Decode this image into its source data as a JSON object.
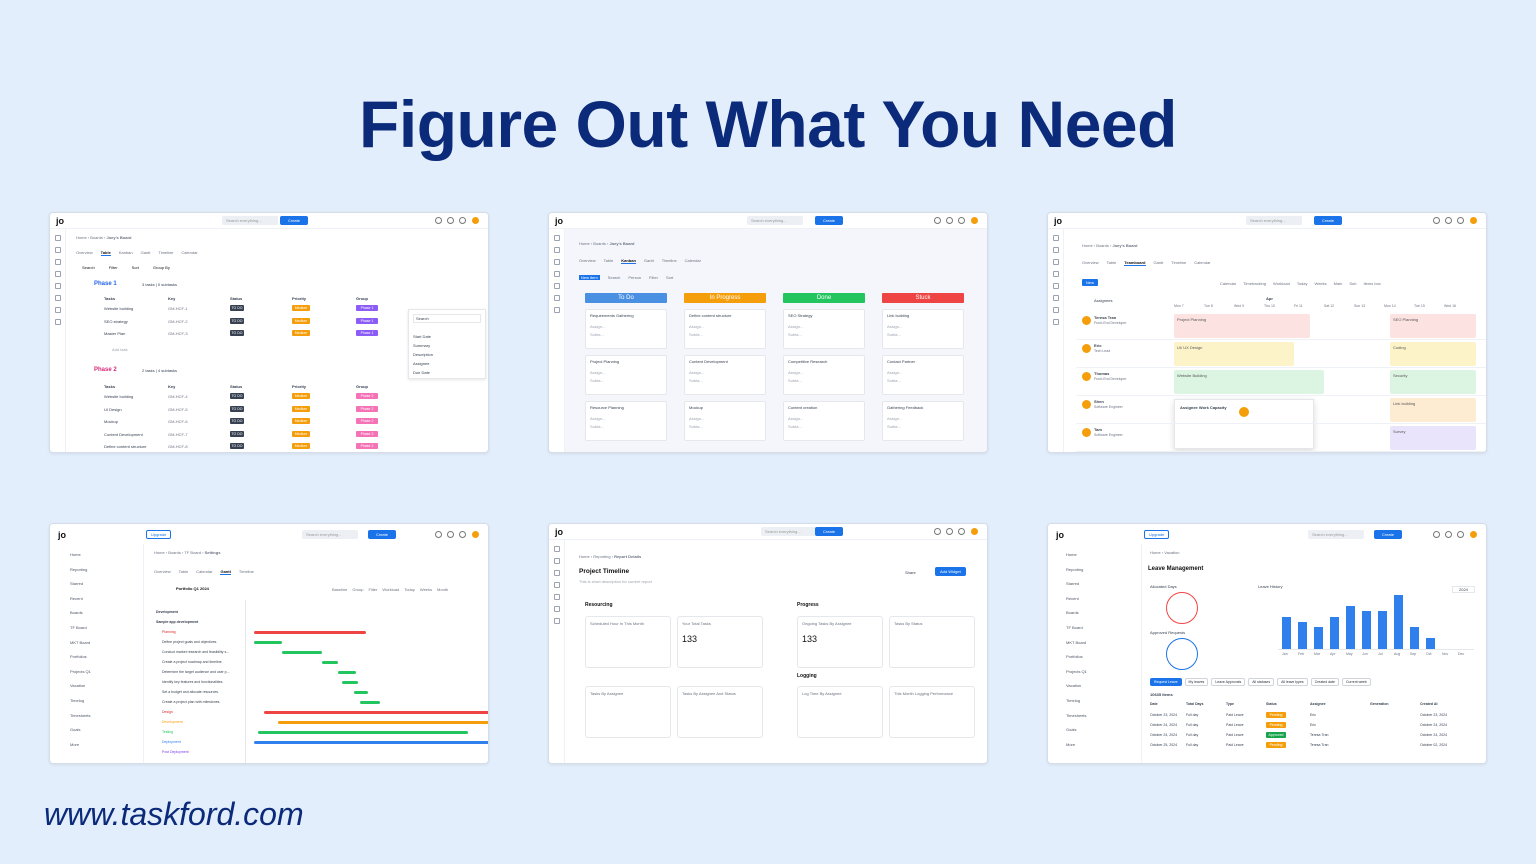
{
  "headline": "Figure Out What You Need",
  "url": "www.taskford.com",
  "colors": {
    "headline": "#0b2a7a",
    "background": "#e3eefc",
    "primary": "#1a73e8"
  },
  "common": {
    "logo": "jo",
    "search_placeholder": "Search everything...",
    "create": "Create",
    "upgrade": "Upgrade",
    "share": "Share"
  },
  "table_card": {
    "breadcrumb": [
      "Home",
      "Boards",
      "Joey's Board"
    ],
    "tabs": [
      "Overview",
      "Table",
      "Kanban",
      "Gantt",
      "Timeline",
      "Calendar"
    ],
    "toolbar": [
      "Search",
      "Filter",
      "Sort",
      "Group By"
    ],
    "phase1": {
      "title": "Phase 1",
      "meta": "3 tasks | 0 subtasks"
    },
    "columns": [
      "Tasks",
      "Key",
      "Status",
      "Priority",
      "Group"
    ],
    "phase1_rows": [
      {
        "task": "Website building",
        "key": "GM-HCF-1",
        "status": "TO DO",
        "priority": "Medium",
        "group": "Phase 1"
      },
      {
        "task": "SEO strategy",
        "key": "GM-HCF-2",
        "status": "TO DO",
        "priority": "Medium",
        "group": "Phase 1"
      },
      {
        "task": "Master Plan",
        "key": "GM-HCF-3",
        "status": "TO DO",
        "priority": "Medium",
        "group": "Phase 1"
      }
    ],
    "add_task": "Add task",
    "phase2": {
      "title": "Phase 2",
      "meta": "2 tasks | 4 subtasks"
    },
    "phase2_rows": [
      {
        "task": "Website building",
        "key": "GM-HCF-4",
        "status": "TO DO",
        "priority": "Medium",
        "group": "Phase 2"
      },
      {
        "task": "UI Design",
        "key": "GM-HCF-5",
        "status": "TO DO",
        "priority": "Medium",
        "group": "Phase 2"
      },
      {
        "task": "Mockup",
        "key": "GM-HCF-6",
        "status": "TO DO",
        "priority": "Medium",
        "group": "Phase 2"
      },
      {
        "task": "Content Development",
        "key": "GM-HCF-7",
        "status": "TO DO",
        "priority": "Medium",
        "group": "Phase 2"
      },
      {
        "task": "Define content structure",
        "key": "GM-HCF-8",
        "status": "TO DO",
        "priority": "Medium",
        "group": "Phase 2"
      }
    ],
    "dropdown": {
      "search": "Search",
      "items": [
        "Start Date",
        "Summary",
        "Description",
        "Assignee",
        "Due Date"
      ]
    }
  },
  "kanban_card": {
    "breadcrumb": [
      "Home",
      "Boards",
      "Joey's Board"
    ],
    "tabs": [
      "Overview",
      "Table",
      "Kanban",
      "Gantt",
      "Timeline",
      "Calendar"
    ],
    "toolbar": [
      "New item",
      "Search",
      "Person",
      "Filter",
      "Sort"
    ],
    "columns": [
      {
        "title": "To Do",
        "color": "#4a90e2",
        "cards": [
          "Requirements Gathering",
          "Project Planning",
          "Resource Planning"
        ]
      },
      {
        "title": "In Progress",
        "color": "#f59e0b",
        "cards": [
          "Define content structure",
          "Content Development",
          "Mockup"
        ]
      },
      {
        "title": "Done",
        "color": "#22c55e",
        "cards": [
          "SEO Strategy",
          "Competitive Research",
          "Content creation"
        ]
      },
      {
        "title": "Stuck",
        "color": "#ef4444",
        "cards": [
          "Link building",
          "Contact Partner",
          "Gathering Feedback"
        ]
      }
    ],
    "card_assignee": "Assign...",
    "card_subtasks": "Subta..."
  },
  "team_card": {
    "breadcrumb": [
      "Home",
      "Boards",
      "Joey's Board"
    ],
    "tabs": [
      "Overview",
      "Table",
      "Teamboard",
      "Gantt",
      "Timeline",
      "Calendar"
    ],
    "new": "New",
    "toolbar": [
      "Calendar",
      "Timetracking",
      "Workload",
      "Today",
      "Weeks",
      "Main",
      "Sub",
      "Items box"
    ],
    "assignees_label": "Assignees",
    "month": "Apr",
    "days": [
      "Mon 7",
      "Tue 8",
      "Wed 9",
      "Thu 10",
      "Fri 11",
      "Sat 12",
      "Sun 13",
      "Mon 14",
      "Tue 15",
      "Wed 16"
    ],
    "people": [
      {
        "name": "Teresa Tran",
        "role": "Front-End Developer"
      },
      {
        "name": "Eric",
        "role": "Tech Lead"
      },
      {
        "name": "Thomas",
        "role": "Front-End Developer"
      },
      {
        "name": "Shen",
        "role": "Software Engineer"
      },
      {
        "name": "Tam",
        "role": "Software Engineer"
      }
    ],
    "blocks": [
      "Project Planning",
      "UI/ UX Design",
      "Website Building",
      "SEO Planning",
      "Coding",
      "Security",
      "Link building",
      "Survey"
    ],
    "popup": "Assignee Work Capacity"
  },
  "gantt_card": {
    "sidebar": [
      "Home",
      "Reporting",
      "Starred",
      "Recent",
      "Boards",
      "TF Board",
      "MKT Board",
      "Portfolios",
      "Projects Q1",
      "Vacation",
      "Timelog",
      "Timesheets",
      "Goals",
      "More"
    ],
    "breadcrumb": [
      "Home",
      "Boards",
      "TF Board",
      "Settings"
    ],
    "tabs": [
      "Overview",
      "Table",
      "Calendar",
      "Gantt",
      "Timeline"
    ],
    "portfolio": "Portfolio Q1 2024",
    "toolbar": [
      "Baseline",
      "Group",
      "Filter",
      "Workload",
      "Today",
      "Weeks",
      "Month"
    ],
    "rows": [
      "Development",
      "Sample app development",
      "Planning",
      "Define project goals and objectives.",
      "Conduct market research and feasibility s...",
      "Create a project roadmap and timeline.",
      "Determine the target audience and user p...",
      "Identify key features and functionalities.",
      "Set a budget and allocate resources.",
      "Create a project plan with milestones.",
      "Design",
      "Development",
      "Testing",
      "Deployment",
      "Post Deployment"
    ]
  },
  "report_card": {
    "breadcrumb": [
      "Home",
      "Reporting",
      "Report Details"
    ],
    "title": "Project Timeline",
    "description": "This is short description for current report",
    "add_widget": "Add Widget",
    "sections": {
      "resourcing": "Resourcing",
      "progress": "Progress",
      "logging": "Logging"
    },
    "widgets": [
      {
        "title": "Scheduled Hour In This Month"
      },
      {
        "title": "Your Total Tasks",
        "value": "133"
      },
      {
        "title": "Ongoing Tasks By Assignee",
        "value": "133"
      },
      {
        "title": "Tasks By Status"
      },
      {
        "title": "Tasks By Assignee"
      },
      {
        "title": "Tasks By Assignee And Status"
      },
      {
        "title": "Log Time By Assignee"
      },
      {
        "title": "This Month Logging Performance"
      }
    ]
  },
  "leave_card": {
    "sidebar": [
      "Home",
      "Reporting",
      "Starred",
      "Recent",
      "Boards",
      "TF Board",
      "MKT Board",
      "Portfolios",
      "Projects Q1",
      "Vacation",
      "Timelog",
      "Timesheets",
      "Goals",
      "More"
    ],
    "breadcrumb": [
      "Home",
      "Vacation"
    ],
    "title": "Leave Management",
    "allocated": "Allocated Days",
    "approved": "Approved Requests",
    "history": "Leave History",
    "year": "2024",
    "months": [
      "Jan",
      "Feb",
      "Mar",
      "Apr",
      "May",
      "Jun",
      "Jul",
      "Aug",
      "Sep",
      "Oct",
      "Nov",
      "Dec"
    ],
    "history_values": [
      3,
      2.5,
      2,
      3,
      4,
      3.5,
      3.5,
      5,
      2,
      1,
      0,
      0
    ],
    "filters": [
      "Request Leave",
      "My leaves",
      "Leave Approvals",
      "All statuses",
      "All leave types",
      "Created date",
      "Current week"
    ],
    "items_label": "10635 Items",
    "table_headers": [
      "Date",
      "Total Days",
      "Type",
      "Status",
      "Assignee",
      "Generation",
      "Created At"
    ],
    "table_rows": [
      {
        "date": "October 23, 2024",
        "days": "Full day",
        "type": "Paid Leave",
        "status": "Pending",
        "assignee": "Eric",
        "created": "October 23, 2024"
      },
      {
        "date": "October 24, 2024",
        "days": "Full day",
        "type": "Paid Leave",
        "status": "Pending",
        "assignee": "Eric",
        "created": "October 24, 2024"
      },
      {
        "date": "October 24, 2024",
        "days": "Full day",
        "type": "Paid Leave",
        "status": "Approved",
        "assignee": "Teresa Tran",
        "created": "October 24, 2024"
      },
      {
        "date": "October 25, 2024",
        "days": "Full day",
        "type": "Paid Leave",
        "status": "Pending",
        "assignee": "Teresa Tran",
        "created": "October 02, 2024"
      }
    ]
  }
}
